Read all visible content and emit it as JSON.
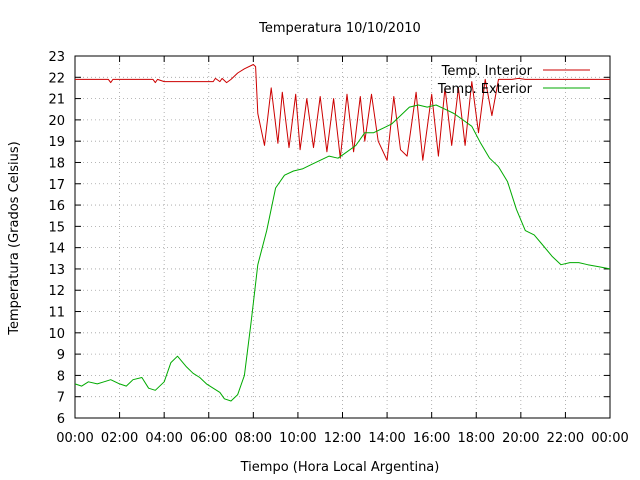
{
  "chart_data": {
    "type": "line",
    "title": "Temperatura 10/10/2010",
    "xlabel": "Tiempo (Hora Local Argentina)",
    "ylabel": "Temperatura (Grados Celsius)",
    "x_ticks": [
      "00:00",
      "02:00",
      "04:00",
      "06:00",
      "08:00",
      "10:00",
      "12:00",
      "14:00",
      "16:00",
      "18:00",
      "20:00",
      "22:00",
      "00:00"
    ],
    "y_ticks": [
      6,
      7,
      8,
      9,
      10,
      11,
      12,
      13,
      14,
      15,
      16,
      17,
      18,
      19,
      20,
      21,
      22,
      23
    ],
    "xlim_hours": [
      0,
      24
    ],
    "ylim": [
      6,
      23
    ],
    "grid": true,
    "legend_position": "top-right",
    "series": [
      {
        "name": "Temp. Interior",
        "color": "#cc0000",
        "x_hours": [
          0.0,
          1.5,
          1.6,
          1.7,
          2.0,
          3.5,
          3.6,
          3.7,
          4.0,
          5.0,
          6.2,
          6.3,
          6.5,
          6.6,
          6.8,
          7.0,
          7.3,
          7.6,
          8.0,
          8.1,
          8.2,
          8.5,
          8.8,
          9.1,
          9.3,
          9.6,
          9.9,
          10.1,
          10.4,
          10.7,
          11.0,
          11.3,
          11.6,
          11.9,
          12.2,
          12.5,
          12.8,
          13.0,
          13.3,
          13.6,
          14.0,
          14.3,
          14.6,
          14.9,
          15.3,
          15.6,
          16.0,
          16.3,
          16.6,
          16.9,
          17.2,
          17.5,
          17.8,
          18.1,
          18.4,
          18.7,
          19.0,
          19.3,
          19.6,
          19.9,
          20.2,
          20.5,
          20.8,
          21.5,
          22.0,
          23.0,
          24.0
        ],
        "values": [
          21.9,
          21.9,
          21.75,
          21.9,
          21.9,
          21.9,
          21.75,
          21.9,
          21.8,
          21.8,
          21.8,
          21.95,
          21.8,
          21.95,
          21.75,
          21.9,
          22.2,
          22.4,
          22.6,
          22.5,
          20.3,
          18.8,
          21.5,
          18.9,
          21.3,
          18.7,
          21.2,
          18.6,
          21.0,
          18.7,
          21.1,
          18.5,
          21.0,
          18.2,
          21.2,
          18.5,
          21.1,
          19.0,
          21.2,
          19.0,
          18.1,
          21.1,
          18.6,
          18.3,
          21.3,
          18.1,
          21.2,
          18.3,
          21.5,
          18.8,
          21.5,
          18.8,
          21.8,
          19.4,
          21.9,
          20.2,
          21.9,
          21.9,
          21.9,
          21.95,
          21.9,
          21.9,
          21.9,
          21.9,
          21.9,
          21.9,
          21.9
        ]
      },
      {
        "name": "Temp. Exterior",
        "color": "#00aa00",
        "x_hours": [
          0.0,
          0.3,
          0.6,
          1.0,
          1.3,
          1.6,
          2.0,
          2.3,
          2.6,
          3.0,
          3.3,
          3.6,
          4.0,
          4.3,
          4.6,
          5.0,
          5.3,
          5.6,
          5.9,
          6.2,
          6.5,
          6.7,
          7.0,
          7.3,
          7.6,
          7.9,
          8.2,
          8.6,
          9.0,
          9.4,
          9.8,
          10.2,
          10.6,
          11.0,
          11.4,
          11.8,
          12.2,
          12.6,
          13.0,
          13.4,
          13.8,
          14.2,
          14.6,
          15.0,
          15.4,
          15.8,
          16.2,
          16.6,
          17.0,
          17.4,
          17.8,
          18.2,
          18.6,
          19.0,
          19.4,
          19.8,
          20.2,
          20.6,
          21.0,
          21.4,
          21.8,
          22.2,
          22.6,
          23.0,
          23.5,
          24.0
        ],
        "values": [
          7.6,
          7.5,
          7.7,
          7.6,
          7.7,
          7.8,
          7.6,
          7.5,
          7.8,
          7.9,
          7.4,
          7.3,
          7.7,
          8.6,
          8.9,
          8.4,
          8.1,
          7.9,
          7.6,
          7.4,
          7.2,
          6.9,
          6.8,
          7.1,
          8.0,
          10.5,
          13.2,
          14.8,
          16.8,
          17.4,
          17.6,
          17.7,
          17.9,
          18.1,
          18.3,
          18.2,
          18.5,
          18.8,
          19.4,
          19.4,
          19.6,
          19.8,
          20.2,
          20.6,
          20.7,
          20.6,
          20.7,
          20.5,
          20.3,
          20.0,
          19.7,
          18.9,
          18.2,
          17.8,
          17.1,
          15.8,
          14.8,
          14.6,
          14.1,
          13.6,
          13.2,
          13.3,
          13.3,
          13.2,
          13.1,
          13.0
        ]
      }
    ]
  }
}
